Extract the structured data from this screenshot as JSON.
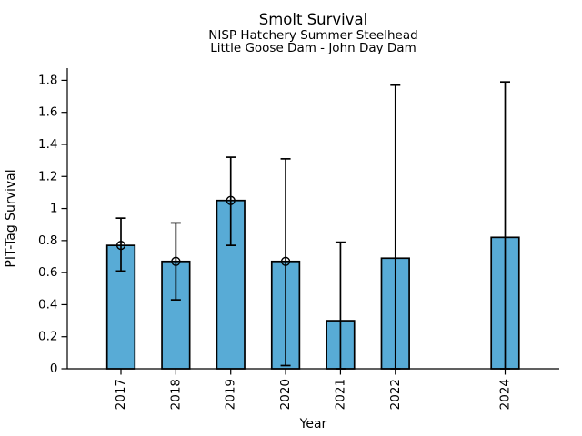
{
  "chart_data": {
    "type": "bar",
    "title": "Smolt Survival",
    "subtitle_line1": "NISP Hatchery Summer Steelhead",
    "subtitle_line2": "Little Goose Dam - John Day Dam",
    "xlabel": "Year",
    "ylabel": "PIT-Tag Survival",
    "ylim": [
      0,
      1.876
    ],
    "ytick_values": [
      0,
      0.2,
      0.4,
      0.6,
      0.8,
      1,
      1.2,
      1.4,
      1.6,
      1.8
    ],
    "ytick_labels": [
      "0",
      "0.2",
      "0.4",
      "0.6",
      "0.8",
      "1",
      "1.2",
      "1.4",
      "1.6",
      "1.8"
    ],
    "grid": false,
    "legend": false,
    "bar_color": "#58abd6",
    "edge_color": "#000000",
    "error_color": "#000000",
    "categories": [
      "2017",
      "2018",
      "2019",
      "2020",
      "2021",
      "2022",
      "2024"
    ],
    "points": [
      {
        "year": 2017,
        "label": "2017",
        "value": 0.77,
        "err_low": 0.61,
        "err_high": 0.94,
        "marker": true
      },
      {
        "year": 2018,
        "label": "2018",
        "value": 0.67,
        "err_low": 0.43,
        "err_high": 0.91,
        "marker": true
      },
      {
        "year": 2019,
        "label": "2019",
        "value": 1.05,
        "err_low": 0.77,
        "err_high": 1.32,
        "marker": true
      },
      {
        "year": 2020,
        "label": "2020",
        "value": 0.67,
        "err_low": 0.02,
        "err_high": 1.31,
        "marker": true
      },
      {
        "year": 2021,
        "label": "2021",
        "value": 0.3,
        "err_low": 0.0,
        "err_high": 0.79,
        "marker": false
      },
      {
        "year": 2022,
        "label": "2022",
        "value": 0.69,
        "err_low": 0.0,
        "err_high": 1.77,
        "marker": false
      },
      {
        "year": 2024,
        "label": "2024",
        "value": 0.82,
        "err_low": 0.0,
        "err_high": 1.79,
        "marker": false
      }
    ]
  }
}
